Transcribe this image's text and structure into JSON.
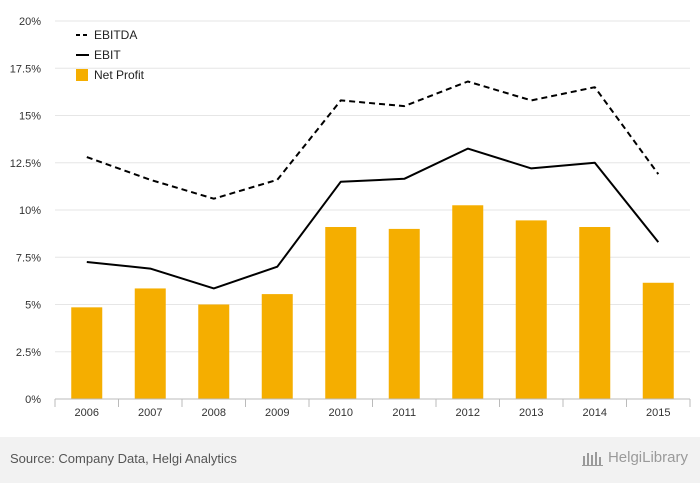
{
  "chart_data": {
    "type": "bar",
    "categories": [
      "2006",
      "2007",
      "2008",
      "2009",
      "2010",
      "2011",
      "2012",
      "2013",
      "2014",
      "2015"
    ],
    "series": [
      {
        "name": "EBITDA",
        "kind": "line",
        "style": "dashed",
        "color": "#000000",
        "values": [
          12.8,
          11.6,
          10.6,
          11.6,
          15.8,
          15.5,
          16.8,
          15.8,
          16.5,
          11.9
        ]
      },
      {
        "name": "EBIT",
        "kind": "line",
        "style": "solid",
        "color": "#000000",
        "values": [
          7.25,
          6.9,
          5.85,
          7.0,
          11.5,
          11.65,
          13.25,
          12.2,
          12.5,
          8.3
        ]
      },
      {
        "name": "Net Profit",
        "kind": "bar",
        "color": "#f5ae00",
        "values": [
          4.85,
          5.85,
          5.0,
          5.55,
          9.1,
          9.0,
          10.25,
          9.45,
          9.1,
          6.15
        ]
      }
    ],
    "yticks": [
      "0%",
      "2.5%",
      "5%",
      "7.5%",
      "10%",
      "12.5%",
      "15%",
      "17.5%",
      "20%"
    ],
    "ylim": [
      0,
      20
    ],
    "legend_position": "top-left",
    "grid": true
  },
  "footer": {
    "source": "Source: Company Data, Helgi Analytics",
    "brand": "HelgiLibrary"
  }
}
